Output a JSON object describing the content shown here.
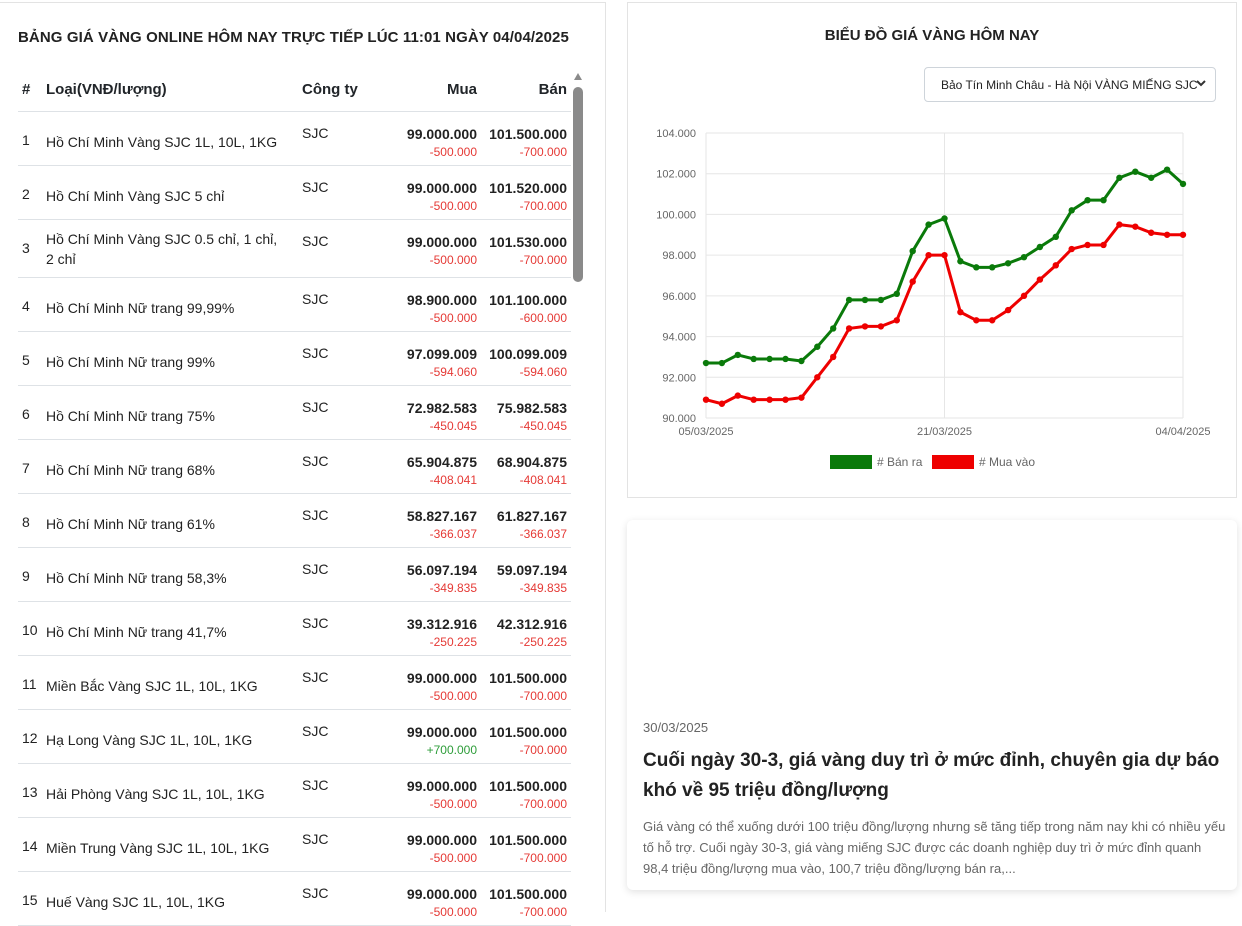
{
  "table": {
    "title": "BẢNG GIÁ VÀNG ONLINE HÔM NAY TRỰC TIẾP LÚC 11:01 NGÀY 04/04/2025",
    "headers": {
      "num": "#",
      "type": "Loại(VNĐ/lượng)",
      "company": "Công ty",
      "buy": "Mua",
      "sell": "Bán"
    },
    "rows": [
      {
        "num": "1",
        "name": "Hồ Chí Minh Vàng SJC 1L, 10L, 1KG",
        "company": "SJC",
        "buy": "99.000.000",
        "buy_change": "-500.000",
        "sell": "101.500.000",
        "sell_change": "-700.000"
      },
      {
        "num": "2",
        "name": "Hồ Chí Minh Vàng SJC 5 chỉ",
        "company": "SJC",
        "buy": "99.000.000",
        "buy_change": "-500.000",
        "sell": "101.520.000",
        "sell_change": "-700.000"
      },
      {
        "num": "3",
        "name": "Hồ Chí Minh Vàng SJC 0.5 chỉ, 1 chỉ, 2 chỉ",
        "company": "SJC",
        "buy": "99.000.000",
        "buy_change": "-500.000",
        "sell": "101.530.000",
        "sell_change": "-700.000"
      },
      {
        "num": "4",
        "name": "Hồ Chí Minh Nữ trang 99,99%",
        "company": "SJC",
        "buy": "98.900.000",
        "buy_change": "-500.000",
        "sell": "101.100.000",
        "sell_change": "-600.000"
      },
      {
        "num": "5",
        "name": "Hồ Chí Minh Nữ trang 99%",
        "company": "SJC",
        "buy": "97.099.009",
        "buy_change": "-594.060",
        "sell": "100.099.009",
        "sell_change": "-594.060"
      },
      {
        "num": "6",
        "name": "Hồ Chí Minh Nữ trang 75%",
        "company": "SJC",
        "buy": "72.982.583",
        "buy_change": "-450.045",
        "sell": "75.982.583",
        "sell_change": "-450.045"
      },
      {
        "num": "7",
        "name": "Hồ Chí Minh Nữ trang 68%",
        "company": "SJC",
        "buy": "65.904.875",
        "buy_change": "-408.041",
        "sell": "68.904.875",
        "sell_change": "-408.041"
      },
      {
        "num": "8",
        "name": "Hồ Chí Minh Nữ trang 61%",
        "company": "SJC",
        "buy": "58.827.167",
        "buy_change": "-366.037",
        "sell": "61.827.167",
        "sell_change": "-366.037"
      },
      {
        "num": "9",
        "name": "Hồ Chí Minh Nữ trang 58,3%",
        "company": "SJC",
        "buy": "56.097.194",
        "buy_change": "-349.835",
        "sell": "59.097.194",
        "sell_change": "-349.835"
      },
      {
        "num": "10",
        "name": "Hồ Chí Minh Nữ trang 41,7%",
        "company": "SJC",
        "buy": "39.312.916",
        "buy_change": "-250.225",
        "sell": "42.312.916",
        "sell_change": "-250.225"
      },
      {
        "num": "11",
        "name": "Miền Bắc Vàng SJC 1L, 10L, 1KG",
        "company": "SJC",
        "buy": "99.000.000",
        "buy_change": "-500.000",
        "sell": "101.500.000",
        "sell_change": "-700.000"
      },
      {
        "num": "12",
        "name": "Hạ Long Vàng SJC 1L, 10L, 1KG",
        "company": "SJC",
        "buy": "99.000.000",
        "buy_change": "+700.000",
        "sell": "101.500.000",
        "sell_change": "-700.000"
      },
      {
        "num": "13",
        "name": "Hải Phòng Vàng SJC 1L, 10L, 1KG",
        "company": "SJC",
        "buy": "99.000.000",
        "buy_change": "-500.000",
        "sell": "101.500.000",
        "sell_change": "-700.000"
      },
      {
        "num": "14",
        "name": "Miền Trung Vàng SJC 1L, 10L, 1KG",
        "company": "SJC",
        "buy": "99.000.000",
        "buy_change": "-500.000",
        "sell": "101.500.000",
        "sell_change": "-700.000"
      },
      {
        "num": "15",
        "name": "Huế Vàng SJC 1L, 10L, 1KG",
        "company": "SJC",
        "buy": "99.000.000",
        "buy_change": "-500.000",
        "sell": "101.500.000",
        "sell_change": "-700.000"
      }
    ]
  },
  "chart_panel": {
    "title": "BIỂU ĐỒ GIÁ VÀNG HÔM NAY",
    "select_value": "Bảo Tín Minh Châu - Hà Nội VÀNG MIẾNG SJC",
    "select_icon": "chevron-down-icon"
  },
  "chart_data": {
    "type": "line",
    "x_tick_labels": [
      "05/03/2025",
      "21/03/2025",
      "04/04/2025"
    ],
    "y_tick_labels": [
      "90.000",
      "92.000",
      "94.000",
      "96.000",
      "98.000",
      "100.000",
      "102.000",
      "104.000"
    ],
    "ylim": [
      90000,
      104000
    ],
    "grid": true,
    "legend_position": "bottom",
    "series": [
      {
        "name": "# Bán ra",
        "color": "#0a7a0a",
        "values": [
          92700,
          92700,
          93100,
          92900,
          92900,
          92900,
          92800,
          93500,
          94400,
          95800,
          95800,
          95800,
          96100,
          98200,
          99500,
          99800,
          97700,
          97400,
          97400,
          97600,
          97900,
          98400,
          98900,
          100200,
          100700,
          100700,
          101800,
          102100,
          101800,
          102200,
          101500
        ]
      },
      {
        "name": "# Mua vào",
        "color": "#ee0000",
        "values": [
          90900,
          90700,
          91100,
          90900,
          90900,
          90900,
          91000,
          92000,
          93000,
          94400,
          94500,
          94500,
          94800,
          96700,
          98000,
          98000,
          95200,
          94800,
          94800,
          95300,
          96000,
          96800,
          97500,
          98300,
          98500,
          98500,
          99500,
          99400,
          99100,
          99000,
          99000
        ]
      }
    ]
  },
  "news": {
    "date": "30/03/2025",
    "title": "Cuối ngày 30-3, giá vàng duy trì ở mức đỉnh, chuyên gia dự báo khó về 95 triệu đồng/lượng",
    "description": "Giá vàng có thể xuống dưới 100 triệu đồng/lượng nhưng sẽ tăng tiếp trong năm nay khi có nhiều yếu tố hỗ trợ. Cuối ngày 30-3, giá vàng miếng SJC được các doanh nghiệp duy trì ở mức đỉnh quanh 98,4 triệu đồng/lượng mua vào, 100,7 triệu đồng/lượng bán ra,..."
  }
}
